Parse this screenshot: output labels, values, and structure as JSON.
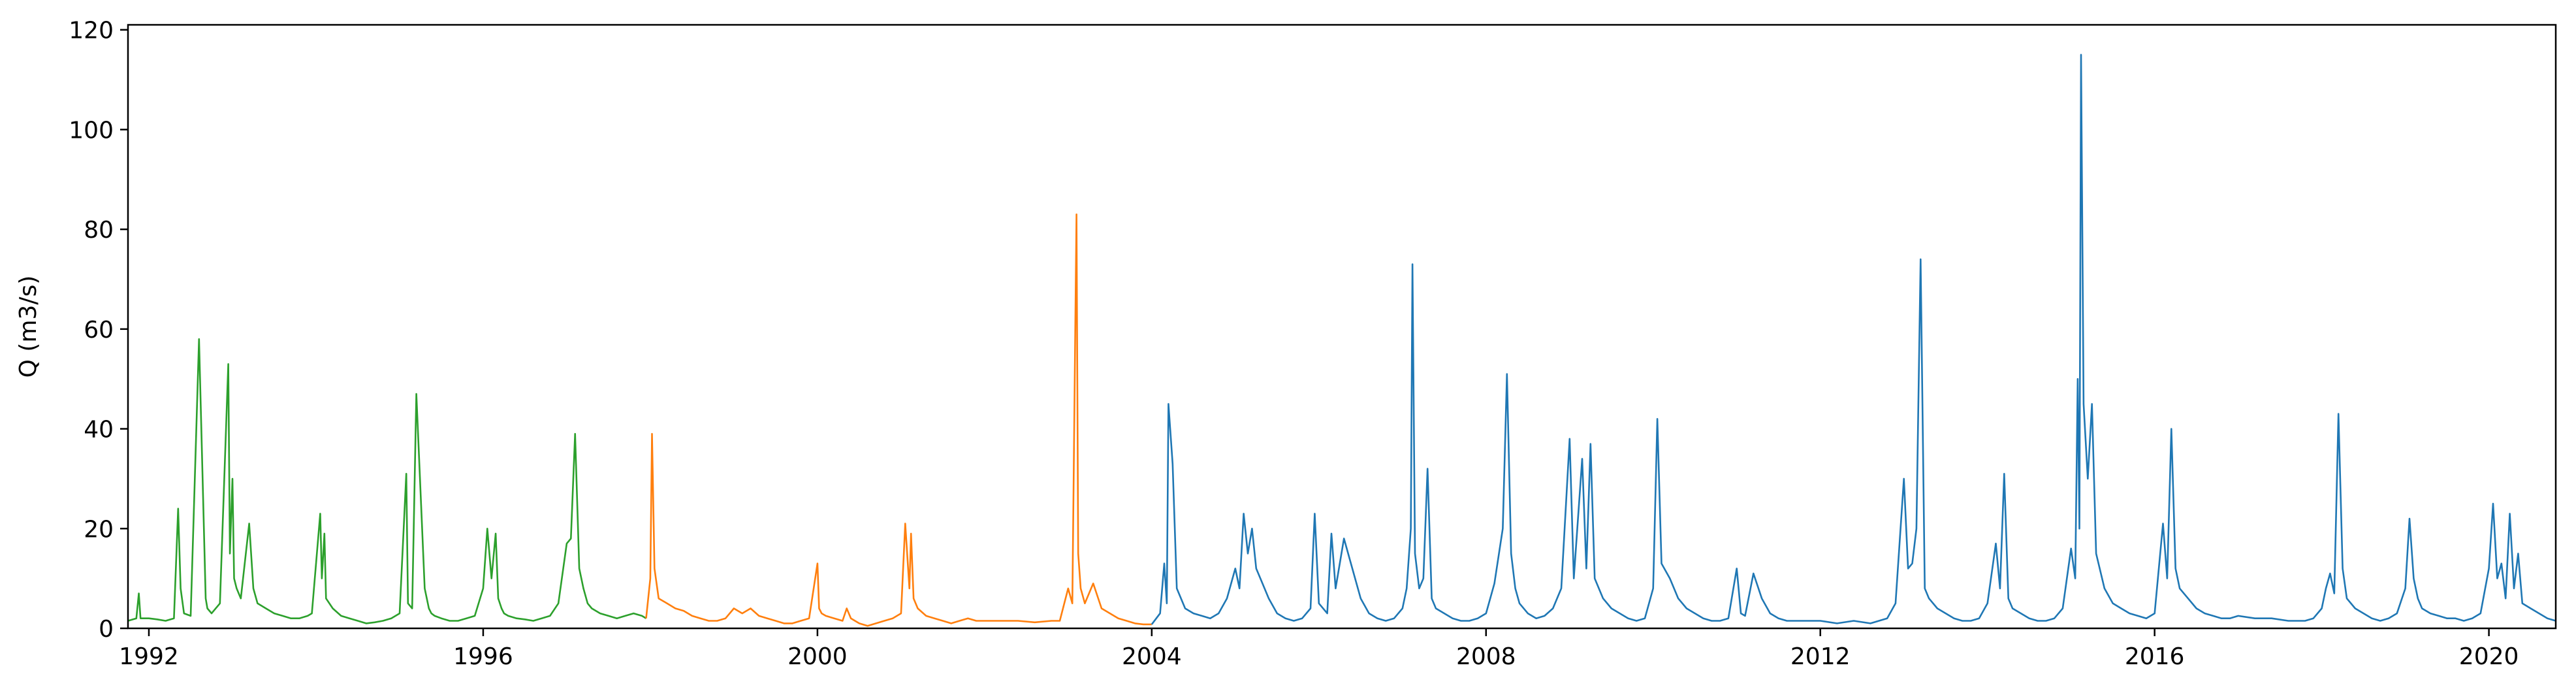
{
  "chart_data": {
    "type": "line",
    "title": "",
    "xlabel": "",
    "ylabel": "Q (m3/s)",
    "xlim": [
      1991.75,
      2020.8
    ],
    "ylim": [
      0,
      121
    ],
    "x_ticks": [
      1992,
      1996,
      2000,
      2004,
      2008,
      2012,
      2016,
      2020
    ],
    "x_tick_labels": [
      "1992",
      "1996",
      "2000",
      "2004",
      "2008",
      "2012",
      "2016",
      "2020"
    ],
    "y_ticks": [
      0,
      20,
      40,
      60,
      80,
      100,
      120
    ],
    "y_tick_labels": [
      "0",
      "20",
      "40",
      "60",
      "80",
      "100",
      "120"
    ],
    "grid": false,
    "legend": "none",
    "series": [
      {
        "color": "#2ca02c",
        "x": [
          1991.75,
          1991.85,
          1991.88,
          1991.9,
          1992.0,
          1992.1,
          1992.2,
          1992.3,
          1992.35,
          1992.38,
          1992.42,
          1992.5,
          1992.6,
          1992.68,
          1992.7,
          1992.75,
          1992.85,
          1992.95,
          1992.97,
          1993.0,
          1993.02,
          1993.05,
          1993.1,
          1993.2,
          1993.25,
          1993.3,
          1993.4,
          1993.5,
          1993.6,
          1993.7,
          1993.8,
          1993.9,
          1993.95,
          1994.05,
          1994.07,
          1994.1,
          1994.12,
          1994.2,
          1994.3,
          1994.4,
          1994.5,
          1994.6,
          1994.7,
          1994.8,
          1994.9,
          1995.0,
          1995.08,
          1995.1,
          1995.15,
          1995.2,
          1995.3,
          1995.35,
          1995.38,
          1995.42,
          1995.5,
          1995.6,
          1995.7,
          1995.8,
          1995.9,
          1996.0,
          1996.05,
          1996.1,
          1996.15,
          1996.18,
          1996.22,
          1996.25,
          1996.3,
          1996.4,
          1996.5,
          1996.6,
          1996.7,
          1996.8,
          1996.9,
          1997.0,
          1997.05,
          1997.1,
          1997.15,
          1997.2,
          1997.25,
          1997.3,
          1997.4,
          1997.5,
          1997.6,
          1997.7,
          1997.8,
          1997.9,
          1997.95
        ],
        "y": [
          1.5,
          2.0,
          7.0,
          2.0,
          2.0,
          1.8,
          1.5,
          2.0,
          24.0,
          8.0,
          3.0,
          2.5,
          58.0,
          6.0,
          4.0,
          3.0,
          5.0,
          53.0,
          15.0,
          30.0,
          10.0,
          8.0,
          6.0,
          21.0,
          8.0,
          5.0,
          4.0,
          3.0,
          2.5,
          2.0,
          2.0,
          2.5,
          3.0,
          23.0,
          10.0,
          19.0,
          6.0,
          4.0,
          2.5,
          2.0,
          1.5,
          1.0,
          1.2,
          1.5,
          2.0,
          3.0,
          31.0,
          5.0,
          4.0,
          47.0,
          8.0,
          4.0,
          3.0,
          2.5,
          2.0,
          1.5,
          1.5,
          2.0,
          2.5,
          8.0,
          20.0,
          10.0,
          19.0,
          6.0,
          4.0,
          3.0,
          2.5,
          2.0,
          1.8,
          1.5,
          2.0,
          2.5,
          5.0,
          17.0,
          18.0,
          39.0,
          12.0,
          8.0,
          5.0,
          4.0,
          3.0,
          2.5,
          2.0,
          2.5,
          3.0,
          2.5,
          2.0
        ]
      },
      {
        "color": "#ff7f0e",
        "x": [
          1997.95,
          1998.0,
          1998.02,
          1998.05,
          1998.1,
          1998.2,
          1998.3,
          1998.4,
          1998.5,
          1998.6,
          1998.7,
          1998.8,
          1998.9,
          1999.0,
          1999.1,
          1999.2,
          1999.3,
          1999.4,
          1999.5,
          1999.6,
          1999.7,
          1999.8,
          1999.9,
          2000.0,
          2000.02,
          2000.05,
          2000.1,
          2000.2,
          2000.3,
          2000.35,
          2000.4,
          2000.5,
          2000.6,
          2000.7,
          2000.8,
          2000.9,
          2001.0,
          2001.05,
          2001.1,
          2001.12,
          2001.15,
          2001.2,
          2001.3,
          2001.4,
          2001.5,
          2001.6,
          2001.7,
          2001.8,
          2001.9,
          2002.0,
          2002.2,
          2002.4,
          2002.6,
          2002.8,
          2002.9,
          2003.0,
          2003.05,
          2003.1,
          2003.12,
          2003.15,
          2003.2,
          2003.3,
          2003.4,
          2003.5,
          2003.6,
          2003.7,
          2003.8,
          2003.9,
          2004.0
        ],
        "y": [
          2.0,
          10.0,
          39.0,
          12.0,
          6.0,
          5.0,
          4.0,
          3.5,
          2.5,
          2.0,
          1.5,
          1.5,
          2.0,
          4.0,
          3.0,
          4.0,
          2.5,
          2.0,
          1.5,
          1.0,
          1.0,
          1.5,
          2.0,
          13.0,
          4.0,
          3.0,
          2.5,
          2.0,
          1.5,
          4.0,
          2.0,
          1.0,
          0.5,
          1.0,
          1.5,
          2.0,
          3.0,
          21.0,
          8.0,
          19.0,
          6.0,
          4.0,
          2.5,
          2.0,
          1.5,
          1.0,
          1.5,
          2.0,
          1.5,
          1.5,
          1.5,
          1.5,
          1.2,
          1.5,
          1.5,
          8.0,
          5.0,
          83.0,
          15.0,
          8.0,
          5.0,
          9.0,
          4.0,
          3.0,
          2.0,
          1.5,
          1.0,
          0.8,
          0.8
        ]
      },
      {
        "color": "#1f77b4",
        "x": [
          2004.0,
          2004.1,
          2004.15,
          2004.18,
          2004.2,
          2004.25,
          2004.3,
          2004.4,
          2004.5,
          2004.6,
          2004.7,
          2004.8,
          2004.9,
          2005.0,
          2005.05,
          2005.1,
          2005.15,
          2005.2,
          2005.25,
          2005.3,
          2005.4,
          2005.5,
          2005.6,
          2005.7,
          2005.8,
          2005.9,
          2005.95,
          2006.0,
          2006.1,
          2006.15,
          2006.2,
          2006.3,
          2006.4,
          2006.5,
          2006.6,
          2006.7,
          2006.8,
          2006.9,
          2007.0,
          2007.05,
          2007.1,
          2007.12,
          2007.15,
          2007.2,
          2007.25,
          2007.3,
          2007.35,
          2007.4,
          2007.5,
          2007.6,
          2007.7,
          2007.8,
          2007.9,
          2008.0,
          2008.1,
          2008.2,
          2008.25,
          2008.3,
          2008.35,
          2008.4,
          2008.5,
          2008.6,
          2008.7,
          2008.8,
          2008.9,
          2009.0,
          2009.05,
          2009.1,
          2009.15,
          2009.2,
          2009.25,
          2009.3,
          2009.4,
          2009.5,
          2009.6,
          2009.7,
          2009.8,
          2009.9,
          2010.0,
          2010.05,
          2010.1,
          2010.2,
          2010.3,
          2010.4,
          2010.5,
          2010.6,
          2010.7,
          2010.8,
          2010.9,
          2011.0,
          2011.05,
          2011.1,
          2011.2,
          2011.3,
          2011.4,
          2011.5,
          2011.6,
          2011.7,
          2011.8,
          2011.9,
          2012.0,
          2012.2,
          2012.4,
          2012.6,
          2012.8,
          2012.9,
          2013.0,
          2013.05,
          2013.1,
          2013.15,
          2013.2,
          2013.25,
          2013.3,
          2013.4,
          2013.5,
          2013.6,
          2013.7,
          2013.8,
          2013.9,
          2014.0,
          2014.1,
          2014.15,
          2014.2,
          2014.25,
          2014.3,
          2014.4,
          2014.5,
          2014.6,
          2014.7,
          2014.8,
          2014.9,
          2015.0,
          2015.05,
          2015.08,
          2015.1,
          2015.12,
          2015.15,
          2015.2,
          2015.25,
          2015.3,
          2015.4,
          2015.5,
          2015.6,
          2015.7,
          2015.8,
          2015.9,
          2016.0,
          2016.1,
          2016.15,
          2016.2,
          2016.25,
          2016.3,
          2016.4,
          2016.5,
          2016.6,
          2016.7,
          2016.8,
          2016.9,
          2017.0,
          2017.2,
          2017.4,
          2017.6,
          2017.8,
          2017.9,
          2018.0,
          2018.05,
          2018.1,
          2018.15,
          2018.2,
          2018.25,
          2018.3,
          2018.4,
          2018.5,
          2018.6,
          2018.7,
          2018.8,
          2018.9,
          2019.0,
          2019.05,
          2019.1,
          2019.15,
          2019.2,
          2019.3,
          2019.4,
          2019.5,
          2019.6,
          2019.7,
          2019.8,
          2019.9,
          2020.0,
          2020.05,
          2020.1,
          2020.15,
          2020.2,
          2020.25,
          2020.3,
          2020.35,
          2020.4,
          2020.5,
          2020.6,
          2020.7,
          2020.8
        ],
        "y": [
          0.8,
          3.0,
          13.0,
          5.0,
          45.0,
          33.0,
          8.0,
          4.0,
          3.0,
          2.5,
          2.0,
          3.0,
          6.0,
          12.0,
          8.0,
          23.0,
          15.0,
          20.0,
          12.0,
          10.0,
          6.0,
          3.0,
          2.0,
          1.5,
          2.0,
          4.0,
          23.0,
          5.0,
          3.0,
          19.0,
          8.0,
          18.0,
          12.0,
          6.0,
          3.0,
          2.0,
          1.5,
          2.0,
          4.0,
          8.0,
          20.0,
          73.0,
          15.0,
          8.0,
          10.0,
          32.0,
          6.0,
          4.0,
          3.0,
          2.0,
          1.5,
          1.5,
          2.0,
          3.0,
          9.0,
          20.0,
          51.0,
          15.0,
          8.0,
          5.0,
          3.0,
          2.0,
          2.5,
          4.0,
          8.0,
          38.0,
          10.0,
          22.0,
          34.0,
          12.0,
          37.0,
          10.0,
          6.0,
          4.0,
          3.0,
          2.0,
          1.5,
          2.0,
          8.0,
          42.0,
          13.0,
          10.0,
          6.0,
          4.0,
          3.0,
          2.0,
          1.5,
          1.5,
          2.0,
          12.0,
          3.0,
          2.5,
          11.0,
          6.0,
          3.0,
          2.0,
          1.5,
          1.5,
          1.5,
          1.5,
          1.5,
          1.0,
          1.5,
          1.0,
          2.0,
          5.0,
          30.0,
          12.0,
          13.0,
          20.0,
          74.0,
          8.0,
          6.0,
          4.0,
          3.0,
          2.0,
          1.5,
          1.5,
          2.0,
          5.0,
          17.0,
          8.0,
          31.0,
          6.0,
          4.0,
          3.0,
          2.0,
          1.5,
          1.5,
          2.0,
          4.0,
          16.0,
          10.0,
          50.0,
          20.0,
          115.0,
          45.0,
          30.0,
          45.0,
          15.0,
          8.0,
          5.0,
          4.0,
          3.0,
          2.5,
          2.0,
          3.0,
          21.0,
          10.0,
          40.0,
          12.0,
          8.0,
          6.0,
          4.0,
          3.0,
          2.5,
          2.0,
          2.0,
          2.5,
          2.0,
          2.0,
          1.5,
          1.5,
          2.0,
          4.0,
          8.0,
          11.0,
          7.0,
          43.0,
          12.0,
          6.0,
          4.0,
          3.0,
          2.0,
          1.5,
          2.0,
          3.0,
          8.0,
          22.0,
          10.0,
          6.0,
          4.0,
          3.0,
          2.5,
          2.0,
          2.0,
          1.5,
          2.0,
          3.0,
          12.0,
          25.0,
          10.0,
          13.0,
          6.0,
          23.0,
          8.0,
          15.0,
          5.0,
          4.0,
          3.0,
          2.0,
          1.5
        ]
      }
    ]
  }
}
